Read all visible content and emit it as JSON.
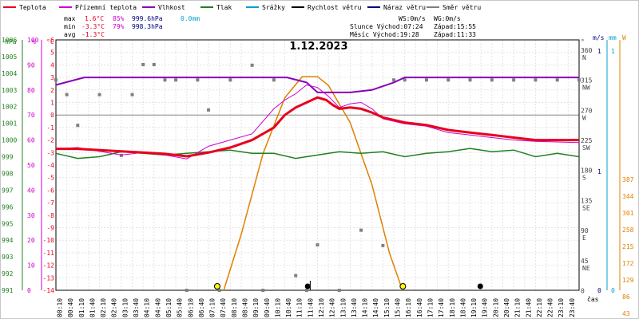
{
  "chart_data": {
    "type": "line",
    "title": "1.12.2023",
    "legend": [
      {
        "key": "temp",
        "label": "Teplota",
        "color": "#e8001c"
      },
      {
        "key": "dew",
        "label": "Přízemní teplota",
        "color": "#d000d0"
      },
      {
        "key": "hum",
        "label": "Vlhkost",
        "color": "#8800b8"
      },
      {
        "key": "press",
        "label": "Tlak",
        "color": "#208020"
      },
      {
        "key": "rain",
        "label": "Srážky",
        "color": "#00a0d0"
      },
      {
        "key": "wspeed",
        "label": "Rychlost větru",
        "color": "#000000"
      },
      {
        "key": "gust",
        "label": "Náraz větru",
        "color": "#000080"
      },
      {
        "key": "dir",
        "label": "Směr větru",
        "color": "#808080"
      }
    ],
    "stats": {
      "max": {
        "label": "max",
        "temp": "1.6°C",
        "hum": "85%",
        "press": "999.6hPa",
        "rain": "0.0mm"
      },
      "min": {
        "label": "min",
        "temp": "-3.3°C",
        "hum": "79%",
        "press": "998.3hPa"
      },
      "avg": {
        "label": "avg",
        "temp": "-1.3°C"
      }
    },
    "info": {
      "ws": "WS:0m/s",
      "wg": "WG:0m/s",
      "sun_rise": "Slunce Východ:07:24",
      "sun_set": "Západ:15:55",
      "moon_rise": "Měsíc  Východ:19:28",
      "moon_set": "Západ:11:33"
    },
    "axes": {
      "hpa": {
        "label": "hPa",
        "min": 991,
        "max": 1006,
        "ticks": [
          "1006",
          "1005",
          "1004",
          "1003",
          "1002",
          "1001",
          "1000",
          "999",
          "998",
          "997",
          "996",
          "995",
          "994",
          "993",
          "992",
          "991"
        ]
      },
      "pct": {
        "label": "%",
        "min": 0,
        "max": 100,
        "ticks": [
          "100",
          "90",
          "80",
          "70",
          "60",
          "50",
          "40",
          "30",
          "20",
          "10",
          "0"
        ]
      },
      "degc": {
        "label": "°C",
        "min": -14,
        "max": 6,
        "ticks": [
          "6",
          "5",
          "4",
          "3",
          "2",
          "1",
          "0",
          "-1",
          "-2",
          "-3",
          "-4",
          "-5",
          "-6",
          "-7",
          "-8",
          "-9",
          "-10",
          "-11",
          "-12",
          "-13",
          "-14"
        ]
      },
      "dir": {
        "label": "°",
        "ticks": [
          {
            "deg": "360",
            "name": "N"
          },
          {
            "deg": "315",
            "name": "NW"
          },
          {
            "deg": "270",
            "name": "W"
          },
          {
            "deg": "225",
            "name": "SW"
          },
          {
            "deg": "180",
            "name": "S"
          },
          {
            "deg": "135",
            "name": "SE"
          },
          {
            "deg": "90",
            "name": "E"
          },
          {
            "deg": "45",
            "name": "NE"
          },
          {
            "deg": "0",
            "name": ""
          }
        ]
      },
      "ms": {
        "label": "m/s",
        "ticks": [
          "0",
          "1"
        ]
      },
      "mm": {
        "label": "mm",
        "ticks": [
          "0",
          "1"
        ]
      },
      "w": {
        "label": "W",
        "max": 387,
        "ticks": [
          "387",
          "344",
          "301",
          "258",
          "215",
          "172",
          "129",
          "86",
          "43",
          "0"
        ]
      },
      "x": {
        "label": "čas",
        "ticks": [
          "00:10",
          "00:40",
          "01:10",
          "01:40",
          "02:10",
          "02:40",
          "03:10",
          "03:40",
          "04:10",
          "04:40",
          "05:10",
          "05:40",
          "06:10",
          "06:40",
          "07:10",
          "07:40",
          "08:10",
          "08:40",
          "09:10",
          "09:40",
          "10:10",
          "10:40",
          "11:10",
          "11:40",
          "12:10",
          "12:40",
          "13:10",
          "13:40",
          "14:10",
          "14:40",
          "15:10",
          "15:40",
          "16:10",
          "16:40",
          "17:10",
          "17:40",
          "18:10",
          "18:40",
          "19:10",
          "19:40",
          "20:10",
          "20:40",
          "21:10",
          "21:40",
          "22:10",
          "22:40",
          "23:10",
          "23:40"
        ]
      }
    },
    "grid": true,
    "temp": [
      [
        0,
        -2.7
      ],
      [
        1,
        -2.7
      ],
      [
        2,
        -2.8
      ],
      [
        3,
        -2.9
      ],
      [
        4,
        -3.0
      ],
      [
        5,
        -3.1
      ],
      [
        6,
        -3.3
      ],
      [
        7,
        -3.0
      ],
      [
        8,
        -2.6
      ],
      [
        9,
        -2.0
      ],
      [
        10,
        -1.0
      ],
      [
        10.5,
        0.0
      ],
      [
        11,
        0.6
      ],
      [
        11.5,
        1.0
      ],
      [
        12,
        1.4
      ],
      [
        12.4,
        1.2
      ],
      [
        12.7,
        0.8
      ],
      [
        13,
        0.5
      ],
      [
        13.5,
        0.6
      ],
      [
        14,
        0.5
      ],
      [
        14.5,
        0.2
      ],
      [
        15,
        -0.2
      ],
      [
        15.5,
        -0.4
      ],
      [
        16,
        -0.6
      ],
      [
        17,
        -0.8
      ],
      [
        18,
        -1.2
      ],
      [
        19,
        -1.4
      ],
      [
        20,
        -1.6
      ],
      [
        21,
        -1.8
      ],
      [
        22,
        -2.0
      ],
      [
        24,
        -2.0
      ]
    ],
    "dew": [
      [
        0,
        -2.7
      ],
      [
        1,
        -2.6
      ],
      [
        2,
        -2.9
      ],
      [
        3,
        -3.2
      ],
      [
        4,
        -3.0
      ],
      [
        5,
        -3.2
      ],
      [
        6,
        -3.5
      ],
      [
        7,
        -2.5
      ],
      [
        8,
        -2.0
      ],
      [
        9,
        -1.5
      ],
      [
        10,
        0.5
      ],
      [
        10.5,
        1.2
      ],
      [
        11,
        1.7
      ],
      [
        11.5,
        2.4
      ],
      [
        12,
        2.2
      ],
      [
        12.5,
        1.5
      ],
      [
        13,
        0.6
      ],
      [
        13.5,
        0.9
      ],
      [
        14,
        1.0
      ],
      [
        14.5,
        0.5
      ],
      [
        15,
        -0.3
      ],
      [
        16,
        -0.7
      ],
      [
        17,
        -0.9
      ],
      [
        18,
        -1.4
      ],
      [
        19,
        -1.6
      ],
      [
        20,
        -1.8
      ],
      [
        21,
        -2.0
      ],
      [
        22,
        -2.1
      ],
      [
        24,
        -2.2
      ]
    ],
    "hum": [
      [
        0,
        82
      ],
      [
        1.3,
        85
      ],
      [
        10.6,
        85
      ],
      [
        11.5,
        83
      ],
      [
        12,
        79
      ],
      [
        13.5,
        79
      ],
      [
        14.5,
        80
      ],
      [
        15.5,
        83
      ],
      [
        16,
        85
      ],
      [
        24,
        85
      ]
    ],
    "press": [
      [
        0,
        999.2
      ],
      [
        1,
        998.9
      ],
      [
        2,
        999.0
      ],
      [
        3,
        999.3
      ],
      [
        4,
        999.2
      ],
      [
        5,
        999.1
      ],
      [
        6,
        999.2
      ],
      [
        7,
        999.3
      ],
      [
        8,
        999.4
      ],
      [
        9,
        999.2
      ],
      [
        10,
        999.2
      ],
      [
        11,
        998.9
      ],
      [
        12,
        999.1
      ],
      [
        13,
        999.3
      ],
      [
        14,
        999.2
      ],
      [
        15,
        999.3
      ],
      [
        16,
        999.0
      ],
      [
        17,
        999.2
      ],
      [
        18,
        999.3
      ],
      [
        19,
        999.5
      ],
      [
        20,
        999.3
      ],
      [
        21,
        999.4
      ],
      [
        22,
        999.0
      ],
      [
        23,
        999.2
      ],
      [
        24,
        999.0
      ]
    ],
    "solar_w": [
      [
        7.7,
        0
      ],
      [
        8.5,
        90
      ],
      [
        9.5,
        220
      ],
      [
        10.5,
        310
      ],
      [
        11.3,
        344
      ],
      [
        12,
        344
      ],
      [
        12.5,
        330
      ],
      [
        13.5,
        270
      ],
      [
        14.5,
        170
      ],
      [
        15.3,
        60
      ],
      [
        15.9,
        0
      ]
    ],
    "wind_dir": [
      [
        0,
        315
      ],
      [
        0.5,
        293
      ],
      [
        1,
        247
      ],
      [
        2,
        293
      ],
      [
        3,
        202
      ],
      [
        3.5,
        293
      ],
      [
        4,
        338
      ],
      [
        4.5,
        338
      ],
      [
        5,
        315
      ],
      [
        5.5,
        315
      ],
      [
        6,
        0
      ],
      [
        6.5,
        315
      ],
      [
        7,
        270
      ],
      [
        7.5,
        0
      ],
      [
        8,
        315
      ],
      [
        9,
        337
      ],
      [
        9.5,
        0
      ],
      [
        10,
        315
      ],
      [
        11,
        22
      ],
      [
        11.5,
        0
      ],
      [
        12,
        68
      ],
      [
        13,
        0
      ],
      [
        14,
        90
      ],
      [
        15,
        67
      ],
      [
        15.5,
        315
      ],
      [
        16,
        315
      ],
      [
        17,
        315
      ],
      [
        18,
        315
      ],
      [
        19,
        315
      ],
      [
        20,
        315
      ],
      [
        21,
        315
      ],
      [
        22,
        315
      ],
      [
        23,
        315
      ],
      [
        24,
        315
      ]
    ],
    "markers": {
      "sunrise": "07:24",
      "sunset": "15:55",
      "moonrise": "19:28",
      "moonset": "11:33",
      "noon": "11:40"
    }
  }
}
